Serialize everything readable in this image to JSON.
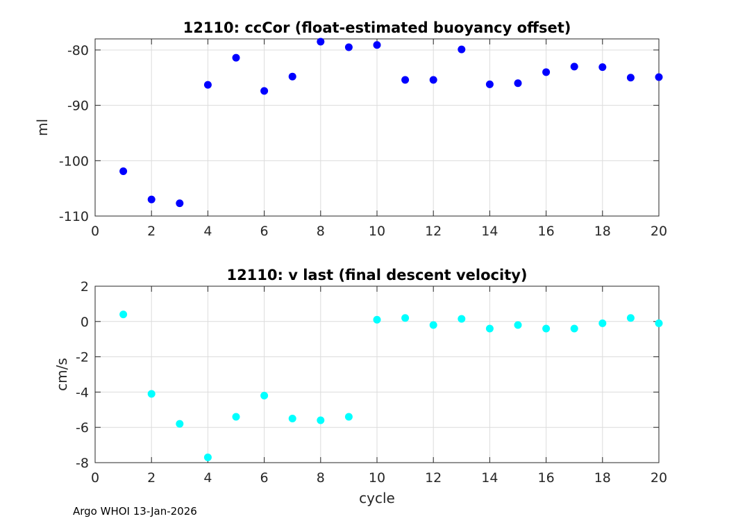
{
  "footer": "Argo WHOI 13-Jan-2026",
  "chart_data": [
    {
      "type": "scatter",
      "title": "12110: ccCor (float-estimated buoyancy offset)",
      "xlabel": "",
      "ylabel": "ml",
      "xlim": [
        0,
        20
      ],
      "ylim": [
        -110,
        -78
      ],
      "xticks": [
        0,
        2,
        4,
        6,
        8,
        10,
        12,
        14,
        16,
        18,
        20
      ],
      "yticks": [
        -110,
        -100,
        -90,
        -80
      ],
      "grid": true,
      "color": "#0000ff",
      "x": [
        1,
        2,
        3,
        4,
        5,
        6,
        7,
        8,
        9,
        10,
        11,
        12,
        13,
        14,
        15,
        16,
        17,
        18,
        19,
        20
      ],
      "y": [
        -101.9,
        -107.0,
        -107.7,
        -86.3,
        -81.4,
        -87.4,
        -84.8,
        -78.5,
        -79.5,
        -79.1,
        -85.4,
        -85.4,
        -79.9,
        -86.2,
        -86.0,
        -84.0,
        -83.0,
        -83.1,
        -85.0,
        -84.9
      ]
    },
    {
      "type": "scatter",
      "title": "12110: v last (final descent velocity)",
      "xlabel": "cycle",
      "ylabel": "cm/s",
      "xlim": [
        0,
        20
      ],
      "ylim": [
        -8,
        2
      ],
      "xticks": [
        0,
        2,
        4,
        6,
        8,
        10,
        12,
        14,
        16,
        18,
        20
      ],
      "yticks": [
        -8,
        -6,
        -4,
        -2,
        0,
        2
      ],
      "grid": true,
      "color": "#00ffff",
      "x": [
        1,
        2,
        3,
        4,
        5,
        6,
        7,
        8,
        9,
        10,
        11,
        12,
        13,
        14,
        15,
        16,
        17,
        18,
        19,
        20
      ],
      "y": [
        0.4,
        -4.1,
        -5.8,
        -7.7,
        -5.4,
        -4.2,
        -5.5,
        -5.6,
        -5.4,
        0.1,
        0.2,
        -0.2,
        0.15,
        -0.4,
        -0.2,
        -0.4,
        -0.4,
        -0.1,
        0.2,
        -0.1
      ]
    }
  ]
}
